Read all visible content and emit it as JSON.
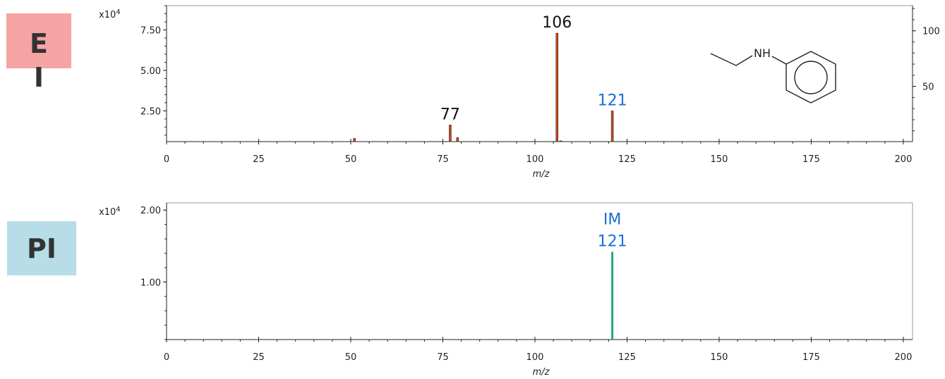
{
  "chart_data": [
    {
      "type": "bar",
      "panel_label": "EI",
      "panel_color": "#f6a3a3",
      "multiplier": {
        "base": "x10",
        "exponent": "4"
      },
      "xlabel": "m/z",
      "xlim": [
        0,
        202.5
      ],
      "xticks": [
        0,
        25,
        50,
        75,
        100,
        125,
        150,
        175,
        200
      ],
      "ylim": [
        0.6,
        9.0
      ],
      "yticks": [
        {
          "value": 2.5,
          "label": "2.50"
        },
        {
          "value": 5,
          "label": "5.00"
        },
        {
          "value": 7.5,
          "label": "7.50"
        }
      ],
      "y2lim": [
        0.35,
        122.6
      ],
      "y2ticks": [
        50,
        100
      ],
      "series": [
        {
          "color": "#c4461a",
          "x": [
            51,
            77,
            79,
            106,
            107,
            121
          ],
          "values": [
            0.8,
            1.63,
            0.85,
            7.3,
            0.65,
            2.5
          ]
        }
      ],
      "annotations": [
        {
          "text": "77",
          "x": 77,
          "color": "#111111"
        },
        {
          "text": "106",
          "x": 106,
          "color": "#111111"
        },
        {
          "text": "121",
          "x": 121,
          "color": "#1a6fd6"
        }
      ],
      "structure_label": "NH",
      "structure_label_color": "#e0661f"
    },
    {
      "type": "bar",
      "panel_label": "PI",
      "panel_color": "#b6dde8",
      "multiplier": {
        "base": "x10",
        "exponent": "4"
      },
      "xlabel": "m/z",
      "xlim": [
        0,
        202.5
      ],
      "xticks": [
        0,
        25,
        50,
        75,
        100,
        125,
        150,
        175,
        200
      ],
      "ylim": [
        0.2,
        2.1
      ],
      "yticks": [
        {
          "value": 1,
          "label": "1.00"
        },
        {
          "value": 2,
          "label": "2.00"
        }
      ],
      "series": [
        {
          "color": "#2aa87a",
          "x": [
            121
          ],
          "values": [
            1.42
          ]
        }
      ],
      "annotations": [
        {
          "text": "IM",
          "x": 121,
          "color": "#1a6fd6",
          "line": 0
        },
        {
          "text": "121",
          "x": 121,
          "color": "#1a6fd6",
          "line": 1
        }
      ]
    }
  ]
}
